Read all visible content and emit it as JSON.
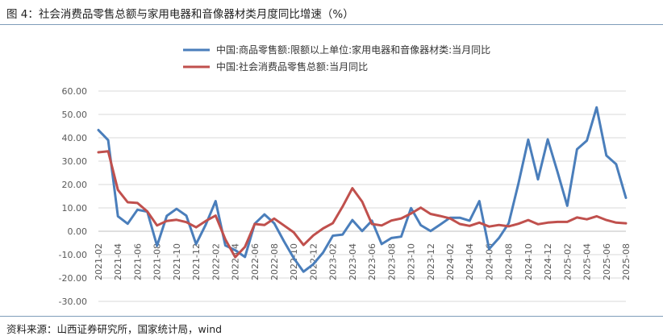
{
  "figure_title": "图 4：社会消费品零售总额与家用电器和音像器材类月度同比增速（%）",
  "source_note": "资料来源：山西证券研究所，国家统计局，wind",
  "chart_data": {
    "type": "line",
    "title": "",
    "xlabel": "",
    "ylabel": "",
    "ylim": [
      -30,
      60
    ],
    "yticks": [
      "60.00",
      "50.00",
      "40.00",
      "30.00",
      "20.00",
      "10.00",
      "0.00",
      "-10.00",
      "-20.00",
      "-30.00"
    ],
    "ytick_values": [
      60,
      50,
      40,
      30,
      20,
      10,
      0,
      -10,
      -20,
      -30
    ],
    "grid": true,
    "legend_position": "top",
    "x": [
      "2021-02",
      "2021-03",
      "2021-04",
      "2021-05",
      "2021-06",
      "2021-07",
      "2021-08",
      "2021-09",
      "2021-10",
      "2021-11",
      "2021-12",
      "2022-01",
      "2022-02",
      "2022-03",
      "2022-04",
      "2022-05",
      "2022-06",
      "2022-07",
      "2022-08",
      "2022-09",
      "2022-10",
      "2022-11",
      "2022-12",
      "2023-01",
      "2023-02",
      "2023-03",
      "2023-04",
      "2023-05",
      "2023-06",
      "2023-07",
      "2023-08",
      "2023-09",
      "2023-10",
      "2023-11",
      "2023-12",
      "2024-01",
      "2024-02",
      "2024-03",
      "2024-04",
      "2024-05",
      "2024-06",
      "2024-07",
      "2024-08",
      "2024-09",
      "2024-10",
      "2024-11",
      "2024-12",
      "2025-01",
      "2025-02",
      "2025-03",
      "2025-04",
      "2025-05",
      "2025-06",
      "2025-07",
      "2025-08"
    ],
    "xtick_labels": [
      "2021-02",
      "2021-04",
      "2021-06",
      "2021-08",
      "2021-10",
      "2021-12",
      "2022-02",
      "2022-04",
      "2022-06",
      "2022-08",
      "2022-10",
      "2022-12",
      "2023-02",
      "2023-04",
      "2023-06",
      "2023-08",
      "2023-10",
      "2023-12",
      "2024-02",
      "2024-04",
      "2024-06",
      "2024-08",
      "2024-10",
      "2024-12",
      "2025-02",
      "2025-04",
      "2025-06",
      "2025-08"
    ],
    "series": [
      {
        "name": "中国:商品零售额:限额以上单位:家用电器和音像器材类:当月同比",
        "color": "#4a7ebb",
        "values": [
          43.3,
          39.0,
          6.4,
          3.2,
          9.2,
          8.4,
          -6.2,
          6.6,
          9.6,
          6.7,
          -5.5,
          2.9,
          12.9,
          -6.1,
          -8.1,
          -11.0,
          3.2,
          7.2,
          3.4,
          -4.3,
          -11.5,
          -17.3,
          -14.1,
          -9.1,
          -1.9,
          -1.4,
          4.8,
          0.1,
          4.5,
          -5.5,
          -2.9,
          -2.3,
          9.9,
          2.6,
          0.1,
          2.9,
          5.8,
          5.8,
          4.5,
          12.9,
          -7.6,
          -2.9,
          3.4,
          20.5,
          39.2,
          22.2,
          39.3,
          25.4,
          10.9,
          35.1,
          38.8,
          53.0,
          32.4,
          28.7,
          14.3
        ]
      },
      {
        "name": "中国:社会消费品零售总额:当月同比",
        "color": "#c0504d",
        "values": [
          33.8,
          34.2,
          17.7,
          12.4,
          12.1,
          8.5,
          2.5,
          4.4,
          4.9,
          3.9,
          1.7,
          4.4,
          6.7,
          -3.5,
          -11.1,
          -6.7,
          3.1,
          2.7,
          5.4,
          2.5,
          -0.5,
          -5.9,
          -1.8,
          1.2,
          3.5,
          10.6,
          18.4,
          12.7,
          3.1,
          2.5,
          4.6,
          5.5,
          7.6,
          10.1,
          7.4,
          6.5,
          5.5,
          3.1,
          2.3,
          3.7,
          2.0,
          2.7,
          2.1,
          3.2,
          4.8,
          3.0,
          3.7,
          4.0,
          4.0,
          5.9,
          5.1,
          6.4,
          4.8,
          3.7,
          3.4
        ]
      }
    ]
  }
}
